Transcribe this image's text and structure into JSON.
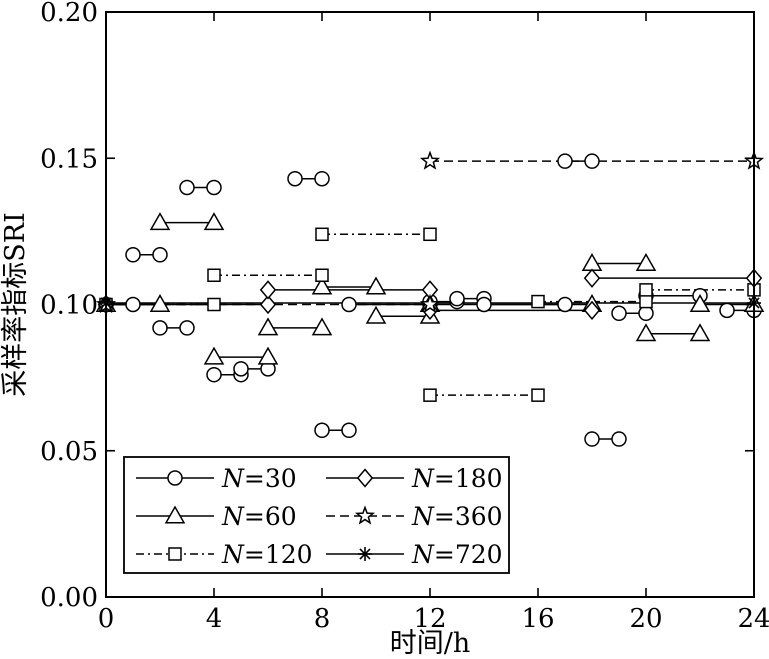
{
  "chart_data": {
    "type": "line",
    "xlabel": "时间/h",
    "ylabel": "采样率指标SRI",
    "xlim": [
      0,
      24
    ],
    "ylim": [
      0,
      0.2
    ],
    "xticks": [
      0,
      4,
      8,
      12,
      16,
      20,
      24
    ],
    "xtick_labels": [
      "0",
      "4",
      "8",
      "12",
      "16",
      "20",
      "24"
    ],
    "yticks": [
      0,
      0.05,
      0.1,
      0.15,
      0.2
    ],
    "ytick_labels": [
      "0.00",
      "0.05",
      "0.10",
      "0.15",
      "0.20"
    ],
    "grid": false,
    "legend_position": "bottom-left",
    "series": [
      {
        "name": "N=30",
        "name_parts": [
          "N",
          "=30"
        ],
        "marker": "circle",
        "dash": "solid",
        "segments": [
          [
            [
              0,
              0.1
            ],
            [
              1,
              0.1
            ]
          ],
          [
            [
              1,
              0.117
            ],
            [
              2,
              0.117
            ]
          ],
          [
            [
              2,
              0.092
            ],
            [
              3,
              0.092
            ]
          ],
          [
            [
              3,
              0.14
            ],
            [
              4,
              0.14
            ]
          ],
          [
            [
              4,
              0.076
            ],
            [
              5,
              0.076
            ],
            [
              5,
              0.078
            ],
            [
              6,
              0.078
            ]
          ],
          [
            [
              7,
              0.143
            ],
            [
              8,
              0.143
            ]
          ],
          [
            [
              8,
              0.057
            ],
            [
              9,
              0.057
            ]
          ],
          [
            [
              9,
              0.1
            ],
            [
              12,
              0.1
            ]
          ],
          [
            [
              12,
              0.101
            ],
            [
              13,
              0.101
            ]
          ],
          [
            [
              13,
              0.102
            ],
            [
              14,
              0.102
            ]
          ],
          [
            [
              14,
              0.1
            ],
            [
              17,
              0.1
            ]
          ],
          [
            [
              17,
              0.149
            ],
            [
              18,
              0.149
            ]
          ],
          [
            [
              18,
              0.054
            ],
            [
              19,
              0.054
            ]
          ],
          [
            [
              19,
              0.097
            ],
            [
              20,
              0.097
            ]
          ],
          [
            [
              20,
              0.103
            ],
            [
              22,
              0.103
            ]
          ],
          [
            [
              23,
              0.098
            ],
            [
              24,
              0.098
            ]
          ]
        ]
      },
      {
        "name": "N=60",
        "name_parts": [
          "N",
          "=60"
        ],
        "marker": "triangle",
        "dash": "solid",
        "segments": [
          [
            [
              0,
              0.1
            ],
            [
              2,
              0.1
            ]
          ],
          [
            [
              2,
              0.128
            ],
            [
              4,
              0.128
            ]
          ],
          [
            [
              4,
              0.082
            ],
            [
              6,
              0.082
            ]
          ],
          [
            [
              6,
              0.092
            ],
            [
              8,
              0.092
            ]
          ],
          [
            [
              8,
              0.106
            ],
            [
              10,
              0.106
            ]
          ],
          [
            [
              10,
              0.096
            ],
            [
              12,
              0.096
            ]
          ],
          [
            [
              12,
              0.1
            ],
            [
              18,
              0.1
            ]
          ],
          [
            [
              18,
              0.114
            ],
            [
              20,
              0.114
            ]
          ],
          [
            [
              20,
              0.09
            ],
            [
              22,
              0.09
            ]
          ],
          [
            [
              22,
              0.1
            ],
            [
              24,
              0.1
            ]
          ]
        ]
      },
      {
        "name": "N=120",
        "name_parts": [
          "N",
          "=120"
        ],
        "marker": "square",
        "dash": "dashdot",
        "segments": [
          [
            [
              0,
              0.1
            ],
            [
              4,
              0.1
            ]
          ],
          [
            [
              4,
              0.11
            ],
            [
              8,
              0.11
            ]
          ],
          [
            [
              8,
              0.124
            ],
            [
              12,
              0.124
            ]
          ],
          [
            [
              12,
              0.069
            ],
            [
              16,
              0.069
            ]
          ],
          [
            [
              16,
              0.101
            ],
            [
              20,
              0.101
            ]
          ],
          [
            [
              20,
              0.105
            ],
            [
              24,
              0.105
            ]
          ]
        ]
      },
      {
        "name": "N=180",
        "name_parts": [
          "N",
          "=180"
        ],
        "marker": "diamond",
        "dash": "solid",
        "segments": [
          [
            [
              0,
              0.1
            ],
            [
              6,
              0.1
            ]
          ],
          [
            [
              6,
              0.105
            ],
            [
              12,
              0.105
            ]
          ],
          [
            [
              12,
              0.098
            ],
            [
              18,
              0.098
            ]
          ],
          [
            [
              18,
              0.109
            ],
            [
              24,
              0.109
            ]
          ]
        ]
      },
      {
        "name": "N=360",
        "name_parts": [
          "N",
          "=360"
        ],
        "marker": "star",
        "dash": "dashed",
        "segments": [
          [
            [
              0,
              0.1
            ],
            [
              12,
              0.1
            ]
          ],
          [
            [
              12,
              0.149
            ],
            [
              24,
              0.149
            ]
          ]
        ]
      },
      {
        "name": "N=720",
        "name_parts": [
          "N",
          "=720"
        ],
        "marker": "asterisk",
        "dash": "solid",
        "segments": [
          [
            [
              0,
              0.1005
            ],
            [
              24,
              0.1005
            ]
          ]
        ]
      }
    ]
  }
}
